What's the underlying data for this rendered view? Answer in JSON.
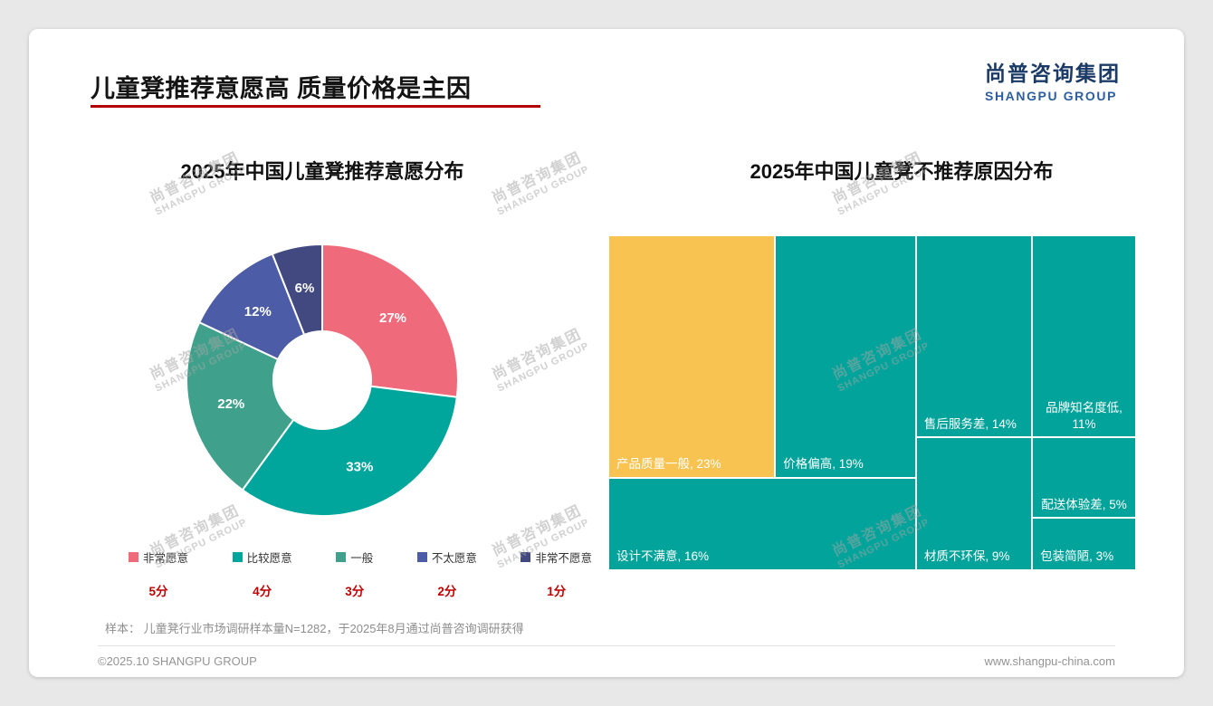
{
  "page": {
    "title": "儿童凳推荐意愿高 质量价格是主因",
    "logo": {
      "cn": "尚普咨询集团",
      "en": "SHANGPU GROUP"
    },
    "watermark": {
      "cn": "尚普咨询集团",
      "en": "SHANGPU GROUP"
    },
    "sample_note": "样本： 儿童凳行业市场调研样本量N=1282，于2025年8月通过尚普咨询调研获得",
    "footer": {
      "left": "©2025.10 SHANGPU GROUP",
      "right": "www.shangpu-china.com"
    },
    "accent_red": "#c00000",
    "logo_blue": "#1b3a66"
  },
  "chart_data": [
    {
      "type": "pie",
      "donut": true,
      "title": "2025年中国儿童凳推荐意愿分布",
      "categories": [
        "非常愿意",
        "比较愿意",
        "一般",
        "不太愿意",
        "非常不愿意"
      ],
      "values": [
        27,
        33,
        22,
        12,
        6
      ],
      "labels": [
        "27%",
        "33%",
        "22%",
        "12%",
        "6%"
      ],
      "scores": [
        "5分",
        "4分",
        "3分",
        "2分",
        "1分"
      ],
      "colors": [
        "#ef6b7c",
        "#00a59c",
        "#3fa18b",
        "#4c5ca6",
        "#414980"
      ],
      "legend_position": "bottom",
      "start_angle_deg": 0,
      "direction": "clockwise"
    },
    {
      "type": "treemap",
      "title": "2025年中国儿童凳不推荐原因分布",
      "items": [
        {
          "label": "产品质量一般",
          "pct": 23,
          "text": "产品质量一般, 23%",
          "color": "#f9c351",
          "x": 0,
          "y": 0,
          "w": 0.316,
          "h": 0.724,
          "align": "left"
        },
        {
          "label": "价格偏高",
          "pct": 19,
          "text": "价格偏高, 19%",
          "color": "#02a39a",
          "x": 0.316,
          "y": 0,
          "w": 0.267,
          "h": 0.724,
          "align": "left"
        },
        {
          "label": "设计不满意",
          "pct": 16,
          "text": "设计不满意, 16%",
          "color": "#02a39a",
          "x": 0,
          "y": 0.724,
          "w": 0.583,
          "h": 0.276,
          "align": "left"
        },
        {
          "label": "售后服务差",
          "pct": 14,
          "text": "售后服务差, 14%",
          "color": "#02a39a",
          "x": 0.583,
          "y": 0,
          "w": 0.22,
          "h": 0.603,
          "align": "left"
        },
        {
          "label": "品牌知名度低",
          "pct": 11,
          "text": "品牌知名度低, 11%",
          "color": "#02a39a",
          "x": 0.803,
          "y": 0,
          "w": 0.197,
          "h": 0.603,
          "align": "center"
        },
        {
          "label": "材质不环保",
          "pct": 9,
          "text": "材质不环保, 9%",
          "color": "#02a39a",
          "x": 0.583,
          "y": 0.603,
          "w": 0.22,
          "h": 0.397,
          "align": "left"
        },
        {
          "label": "配送体验差",
          "pct": 5,
          "text": "配送体验差, 5%",
          "color": "#02a39a",
          "x": 0.803,
          "y": 0.603,
          "w": 0.197,
          "h": 0.241,
          "align": "center"
        },
        {
          "label": "包装简陋",
          "pct": 3,
          "text": "包装简陋, 3%",
          "color": "#02a39a",
          "x": 0.803,
          "y": 0.844,
          "w": 0.197,
          "h": 0.156,
          "align": "left"
        }
      ]
    }
  ]
}
